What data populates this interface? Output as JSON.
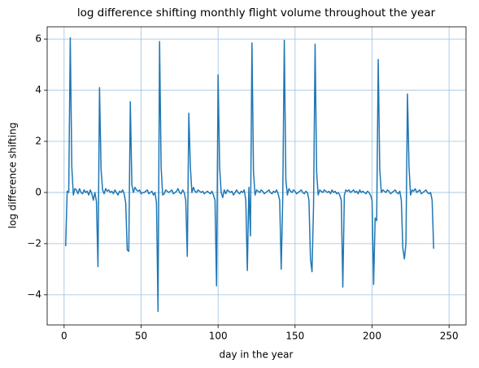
{
  "chart_data": {
    "type": "line",
    "title": "log difference shifting monthly flight volume throughout the year",
    "xlabel": "day in the year",
    "ylabel": "log difference shifting",
    "color": "#1f77b4",
    "grid": true,
    "grid_color": "#9dc0dc",
    "xlim": [
      -11,
      261
    ],
    "ylim": [
      -5.18,
      6.48
    ],
    "xticks": [
      0,
      50,
      100,
      150,
      200,
      250
    ],
    "yticks": [
      {
        "value": -4,
        "label": "−4"
      },
      {
        "value": -2,
        "label": "−2"
      },
      0,
      2,
      4,
      6
    ],
    "x": [
      1,
      2,
      3,
      4,
      5,
      6,
      7,
      8,
      9,
      10,
      11,
      12,
      13,
      14,
      15,
      16,
      17,
      18,
      19,
      20,
      21,
      22,
      23,
      24,
      25,
      26,
      27,
      28,
      29,
      30,
      31,
      32,
      33,
      34,
      35,
      36,
      37,
      38,
      39,
      40,
      41,
      42,
      43,
      44,
      45,
      46,
      47,
      48,
      49,
      50,
      51,
      52,
      53,
      54,
      55,
      56,
      57,
      58,
      59,
      60,
      61,
      62,
      63,
      64,
      65,
      66,
      67,
      68,
      69,
      70,
      71,
      72,
      73,
      74,
      75,
      76,
      77,
      78,
      79,
      80,
      81,
      82,
      83,
      84,
      85,
      86,
      87,
      88,
      89,
      90,
      91,
      92,
      93,
      94,
      95,
      96,
      97,
      98,
      99,
      100,
      101,
      102,
      103,
      104,
      105,
      106,
      107,
      108,
      109,
      110,
      111,
      112,
      113,
      114,
      115,
      116,
      117,
      118,
      119,
      120,
      121,
      122,
      123,
      124,
      125,
      126,
      127,
      128,
      129,
      130,
      131,
      132,
      133,
      134,
      135,
      136,
      137,
      138,
      139,
      140,
      141,
      142,
      143,
      144,
      145,
      146,
      147,
      148,
      149,
      150,
      151,
      152,
      153,
      154,
      155,
      156,
      157,
      158,
      159,
      160,
      161,
      162,
      163,
      164,
      165,
      166,
      167,
      168,
      169,
      170,
      171,
      172,
      173,
      174,
      175,
      176,
      177,
      178,
      179,
      180,
      181,
      182,
      183,
      184,
      185,
      186,
      187,
      188,
      189,
      190,
      191,
      192,
      193,
      194,
      195,
      196,
      197,
      198,
      199,
      200,
      201,
      202,
      203,
      204,
      205,
      206,
      207,
      208,
      209,
      210,
      211,
      212,
      213,
      214,
      215,
      216,
      217,
      218,
      219,
      220,
      221,
      222,
      223,
      224,
      225,
      226,
      227,
      228,
      229,
      230,
      231,
      232,
      233,
      234,
      235,
      236,
      237,
      238,
      239,
      240
    ],
    "values": [
      -2.1,
      0.05,
      0.0,
      6.05,
      1.0,
      -0.1,
      0.15,
      0.1,
      -0.05,
      0.15,
      0.0,
      -0.05,
      0.1,
      0.0,
      0.05,
      -0.1,
      0.1,
      -0.05,
      -0.3,
      0.0,
      -0.35,
      -2.9,
      4.1,
      0.9,
      0.1,
      -0.05,
      0.15,
      0.05,
      0.1,
      0.0,
      0.05,
      -0.05,
      0.1,
      0.0,
      -0.1,
      0.05,
      0.0,
      0.1,
      -0.05,
      -0.4,
      -2.25,
      -2.3,
      3.55,
      0.3,
      0.0,
      0.2,
      0.1,
      0.05,
      0.1,
      -0.05,
      0.0,
      0.0,
      0.05,
      0.1,
      -0.05,
      0.0,
      0.05,
      -0.1,
      0.0,
      -0.4,
      -4.65,
      5.9,
      1.0,
      -0.1,
      -0.05,
      0.1,
      0.05,
      0.0,
      0.05,
      0.1,
      -0.05,
      0.0,
      0.05,
      0.15,
      0.0,
      -0.05,
      0.1,
      0.0,
      -0.3,
      -2.5,
      3.1,
      1.0,
      0.0,
      0.2,
      0.05,
      0.0,
      0.1,
      0.05,
      0.0,
      0.05,
      -0.05,
      0.0,
      0.05,
      0.0,
      -0.05,
      0.05,
      -0.1,
      -0.3,
      -3.65,
      4.6,
      1.0,
      0.0,
      -0.2,
      0.1,
      -0.05,
      0.1,
      0.05,
      0.0,
      0.05,
      -0.1,
      0.0,
      0.1,
      0.0,
      -0.05,
      0.05,
      0.0,
      0.1,
      -0.3,
      -3.05,
      0.2,
      -1.7,
      5.85,
      0.8,
      -0.1,
      0.1,
      0.05,
      0.0,
      0.1,
      0.05,
      -0.05,
      0.0,
      0.05,
      0.1,
      0.0,
      -0.05,
      0.05,
      0.0,
      0.1,
      -0.05,
      -0.3,
      -3.0,
      -0.2,
      5.95,
      0.5,
      -0.1,
      0.15,
      0.05,
      0.0,
      0.1,
      0.05,
      -0.05,
      0.0,
      0.05,
      0.1,
      0.0,
      -0.05,
      0.05,
      0.0,
      -0.3,
      -2.6,
      -3.1,
      -0.5,
      5.8,
      0.8,
      -0.1,
      0.1,
      0.05,
      0.0,
      0.1,
      0.05,
      0.0,
      0.05,
      -0.05,
      0.1,
      0.0,
      0.05,
      -0.05,
      0.0,
      -0.1,
      -0.3,
      -3.7,
      -0.1,
      0.1,
      0.05,
      0.1,
      0.0,
      0.05,
      0.1,
      0.0,
      0.05,
      -0.05,
      0.1,
      0.0,
      0.05,
      0.0,
      -0.05,
      0.05,
      0.0,
      -0.1,
      -0.3,
      -3.6,
      -1.0,
      -1.1,
      5.2,
      0.9,
      0.0,
      0.1,
      0.05,
      0.0,
      0.1,
      0.05,
      -0.05,
      0.0,
      0.05,
      0.1,
      0.0,
      -0.05,
      0.05,
      -0.3,
      -2.2,
      -2.6,
      -2.0,
      3.85,
      1.0,
      -0.1,
      0.1,
      0.05,
      0.15,
      0.0,
      0.05,
      0.1,
      -0.05,
      0.0,
      0.05,
      0.1,
      0.0,
      -0.05,
      0.0,
      -0.3,
      -2.2
    ]
  }
}
